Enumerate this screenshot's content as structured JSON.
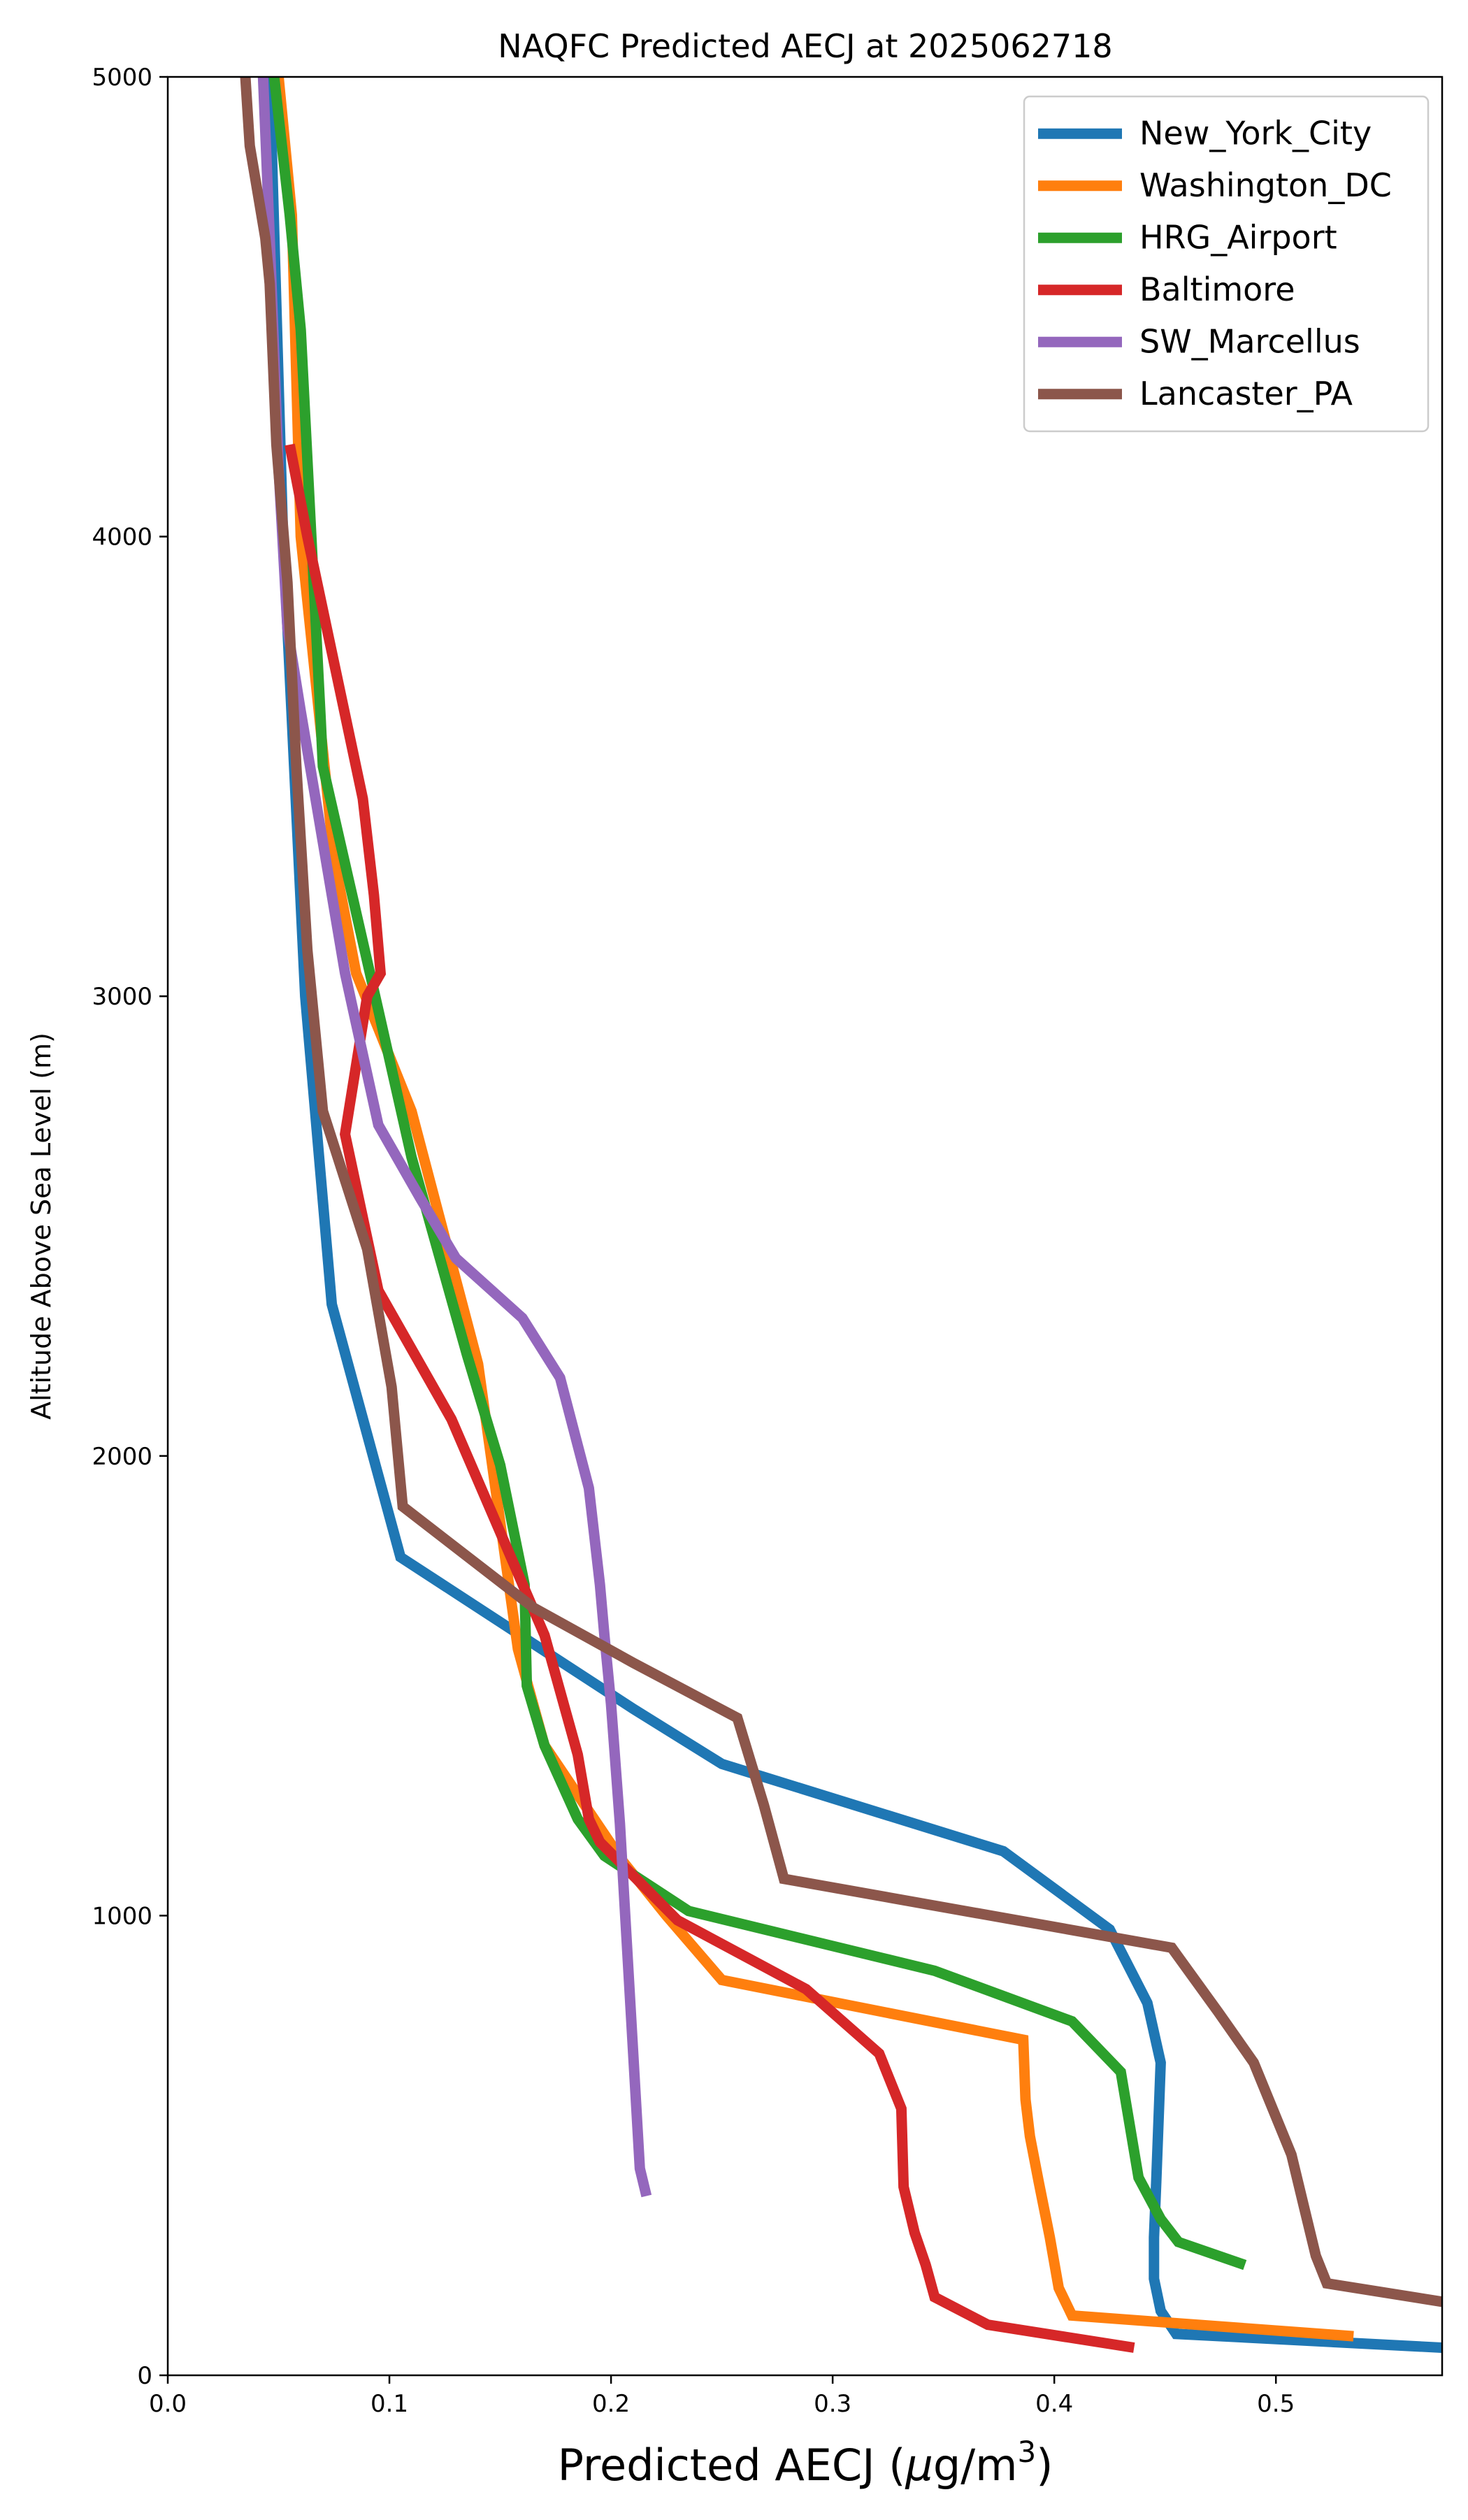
{
  "chart_data": {
    "type": "line",
    "title": "NAQFC Predicted AECJ at 2025062718",
    "xlabel_main": "Predicted AECJ (",
    "xlabel_mu": "μ",
    "xlabel_units": "g/m",
    "xlabel_sup": "3",
    "xlabel_close": ")",
    "ylabel": "Altitude Above Sea Level (m)",
    "xlim": [
      0,
      0.575
    ],
    "ylim": [
      0,
      5000
    ],
    "xticks": [
      0.0,
      0.1,
      0.2,
      0.3,
      0.4,
      0.5
    ],
    "xtick_labels": [
      "0.0",
      "0.1",
      "0.2",
      "0.3",
      "0.4",
      "0.5"
    ],
    "yticks": [
      0,
      1000,
      2000,
      3000,
      4000,
      5000
    ],
    "ytick_labels": [
      "0",
      "1000",
      "2000",
      "3000",
      "4000",
      "5000"
    ],
    "grid": false,
    "legend_position": "top-right",
    "series": [
      {
        "name": "New_York_City",
        "color": "#1f77b4",
        "x": [
          0.575,
          0.455,
          0.448,
          0.445,
          0.445,
          0.446,
          0.447,
          0.448,
          0.442,
          0.425,
          0.377,
          0.25,
          0.21,
          0.105,
          0.074,
          0.062,
          0.052,
          0.046
        ],
        "y": [
          60,
          90,
          140,
          210,
          300,
          420,
          550,
          680,
          810,
          970,
          1140,
          1330,
          1450,
          1780,
          2330,
          3000,
          4000,
          5000
        ]
      },
      {
        "name": "Washington_DC",
        "color": "#ff7f0e",
        "x": [
          0.535,
          0.408,
          0.402,
          0.398,
          0.393,
          0.389,
          0.387,
          0.386,
          0.25,
          0.225,
          0.205,
          0.17,
          0.158,
          0.14,
          0.11,
          0.085,
          0.075,
          0.06,
          0.056,
          0.05
        ],
        "y": [
          85,
          130,
          190,
          300,
          420,
          520,
          600,
          730,
          860,
          1000,
          1120,
          1370,
          1580,
          2200,
          2750,
          3050,
          3300,
          4000,
          4700,
          5000
        ]
      },
      {
        "name": "HRG_Airport",
        "color": "#2ca02c",
        "x": [
          0.486,
          0.456,
          0.448,
          0.438,
          0.43,
          0.408,
          0.346,
          0.235,
          0.197,
          0.185,
          0.17,
          0.162,
          0.161,
          0.15,
          0.135,
          0.11,
          0.095,
          0.07,
          0.069,
          0.06,
          0.055,
          0.048
        ],
        "y": [
          240,
          290,
          340,
          430,
          660,
          770,
          880,
          1010,
          1130,
          1210,
          1370,
          1500,
          1720,
          1980,
          2220,
          2650,
          2970,
          3500,
          3600,
          4450,
          4700,
          5000
        ]
      },
      {
        "name": "Baltimore",
        "color": "#d62728",
        "x": [
          0.436,
          0.37,
          0.346,
          0.342,
          0.337,
          0.332,
          0.331,
          0.321,
          0.288,
          0.23,
          0.195,
          0.19,
          0.185,
          0.17,
          0.128,
          0.095,
          0.08,
          0.09,
          0.096,
          0.093,
          0.088,
          0.063,
          0.055
        ],
        "y": [
          60,
          110,
          170,
          240,
          310,
          410,
          580,
          700,
          840,
          990,
          1160,
          1210,
          1350,
          1610,
          2080,
          2360,
          2700,
          3000,
          3050,
          3220,
          3430,
          4000,
          4200
        ]
      },
      {
        "name": "SW_Marcellus",
        "color": "#9467bd",
        "x": [
          0.216,
          0.213,
          0.21,
          0.207,
          0.204,
          0.2,
          0.197,
          0.195,
          0.19,
          0.177,
          0.16,
          0.13,
          0.114,
          0.095,
          0.08,
          0.06,
          0.054,
          0.05,
          0.046,
          0.043
        ],
        "y": [
          390,
          450,
          700,
          950,
          1200,
          1460,
          1610,
          1720,
          1930,
          2170,
          2300,
          2430,
          2560,
          2720,
          3050,
          3620,
          3800,
          4150,
          4650,
          5000
        ]
      },
      {
        "name": "Lancaster_PA",
        "color": "#8c564b",
        "x": [
          0.575,
          0.523,
          0.518,
          0.513,
          0.507,
          0.49,
          0.474,
          0.453,
          0.278,
          0.269,
          0.257,
          0.21,
          0.165,
          0.106,
          0.101,
          0.09,
          0.07,
          0.063,
          0.058,
          0.054,
          0.049,
          0.046,
          0.044,
          0.037,
          0.035
        ],
        "y": [
          160,
          200,
          260,
          360,
          480,
          680,
          790,
          930,
          1080,
          1240,
          1430,
          1550,
          1670,
          1890,
          2150,
          2450,
          2750,
          3100,
          3500,
          3900,
          4200,
          4550,
          4650,
          4850,
          5000
        ]
      }
    ]
  }
}
